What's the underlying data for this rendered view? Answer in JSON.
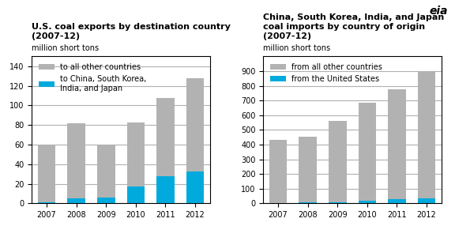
{
  "chart_data": [
    {
      "type": "bar",
      "stacked": true,
      "grid": true,
      "legend": "upper left",
      "title": "U.S. coal exports by destination country\n(2007-12)",
      "subtitle": "million short tons",
      "categories": [
        "2007",
        "2008",
        "2009",
        "2010",
        "2011",
        "2012"
      ],
      "series": [
        {
          "name": "to China, South Korea,\nIndia, and Japan",
          "color": "#00aadd",
          "values": [
            1,
            5,
            6,
            17,
            28,
            33
          ]
        },
        {
          "name": "to all other countries",
          "color": "#b2b2b2",
          "values": [
            59,
            77,
            54,
            66,
            80,
            95
          ]
        }
      ],
      "ylim": [
        0,
        150
      ],
      "yticks": [
        0,
        20,
        40,
        60,
        80,
        100,
        120,
        140
      ]
    },
    {
      "type": "bar",
      "stacked": true,
      "grid": true,
      "legend": "upper left",
      "title": "China, South Korea, India, and Japan\ncoal imports by country of origin\n(2007-12)",
      "subtitle": "million short tons",
      "categories": [
        "2007",
        "2008",
        "2009",
        "2010",
        "2011",
        "2012"
      ],
      "series": [
        {
          "name": "from the United States",
          "color": "#00aadd",
          "values": [
            2,
            8,
            10,
            18,
            30,
            33
          ]
        },
        {
          "name": "from all other countries",
          "color": "#b2b2b2",
          "values": [
            428,
            448,
            553,
            668,
            748,
            865
          ]
        }
      ],
      "ylim": [
        0,
        1000
      ],
      "yticks": [
        0,
        100,
        200,
        300,
        400,
        500,
        600,
        700,
        800,
        900
      ],
      "annotations": [
        "eia"
      ]
    }
  ]
}
